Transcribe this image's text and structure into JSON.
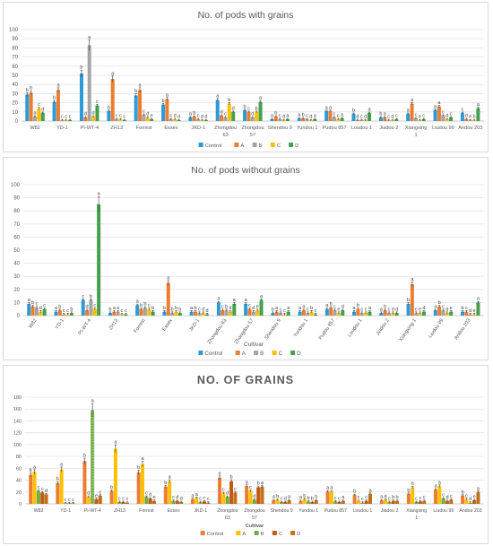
{
  "chart_data": [
    {
      "type": "bar",
      "title": "No. of pods with grains",
      "xlabel": "",
      "ylabel": "",
      "ylim": [
        0,
        100
      ],
      "yticks": [
        0,
        10,
        20,
        30,
        40,
        50,
        60,
        70,
        80,
        90,
        100
      ],
      "grid": true,
      "legend_position": "bottom",
      "categories": [
        "W82",
        "YD-1",
        "PI-WT-4",
        "ZH13",
        "Forrest",
        "Essex",
        "JKD-1",
        "Zhongdou 63",
        "Zhongdou 57",
        "Shendou 9",
        "Yundou 1",
        "Pudou 857",
        "Loudou 1",
        "Jiadou 2",
        "Xiangxing 1",
        "Liudou 99",
        "Andou 203"
      ],
      "series": [
        {
          "name": "Control",
          "color": "#2E9BD6",
          "values": [
            29,
            21,
            52,
            11,
            28,
            18,
            4,
            23,
            12,
            2,
            3,
            11,
            8,
            4,
            8,
            12,
            9
          ]
        },
        {
          "name": "A",
          "color": "#ED7D31",
          "values": [
            31,
            34,
            4,
            46,
            34,
            24,
            5,
            6,
            10,
            5,
            3,
            11,
            1,
            4,
            19,
            16,
            2
          ]
        },
        {
          "name": "B",
          "color": "#A5A5A5",
          "values": [
            5,
            1,
            83,
            2,
            7,
            2,
            2,
            4,
            4,
            2,
            2,
            4,
            1,
            1,
            3,
            6,
            1
          ]
        },
        {
          "name": "C",
          "color": "#FFC000",
          "values": [
            14,
            1,
            5,
            2,
            4,
            2,
            1,
            19,
            10,
            1,
            1,
            2,
            1,
            1,
            1,
            2,
            1
          ]
        },
        {
          "name": "D",
          "color": "#44A04C",
          "values": [
            9,
            1,
            17,
            1,
            2,
            1,
            1,
            10,
            21,
            2,
            2,
            3,
            9,
            2,
            2,
            4,
            14
          ]
        }
      ],
      "letters": [
        [
          "b",
          "b",
          "a",
          "c",
          "d"
        ],
        [
          "b",
          "a",
          "c",
          "c",
          "c"
        ],
        [
          "b",
          "d",
          "a",
          "d",
          "c"
        ],
        [
          "b",
          "a",
          "c",
          "c",
          "c"
        ],
        [
          "b",
          "a",
          "c",
          "d",
          "e"
        ],
        [
          "b",
          "a",
          "c",
          "d",
          "d"
        ],
        [
          "a",
          "b",
          "c",
          "d",
          "d"
        ],
        [
          "a",
          "d",
          "c",
          "b",
          "d"
        ],
        [
          "b",
          "c",
          "d",
          "b",
          "a"
        ],
        [
          "a",
          "b",
          "c",
          "d",
          "a"
        ],
        [
          "a",
          "b",
          "c",
          "d",
          "a"
        ],
        [
          "a",
          "a",
          "c",
          "c",
          "a"
        ],
        [
          "b",
          "d",
          "c",
          "d",
          "a"
        ],
        [
          "b",
          "a",
          "c",
          "d",
          "c"
        ],
        [
          "a",
          "a",
          "c",
          "e",
          "c"
        ],
        [
          "a",
          "a",
          "c",
          "d",
          "c"
        ],
        [
          "c",
          "d",
          "e",
          "b",
          "a"
        ]
      ]
    },
    {
      "type": "bar",
      "title": "No. of pods without grains",
      "xlabel": "Cultivar",
      "ylabel": "",
      "ylim": [
        0,
        100
      ],
      "yticks": [
        0,
        10,
        20,
        30,
        40,
        50,
        60,
        70,
        80,
        90,
        100
      ],
      "grid": true,
      "legend_position": "bottom",
      "categories": [
        "W82",
        "YD-1",
        "PI-WT-4",
        "ZH13",
        "Forrest",
        "Essex",
        "JKD-1",
        "Zhongdou 63",
        "Zhongdou 57",
        "Shendou 9",
        "Yundou 1",
        "Pudou 857",
        "Loudou 1",
        "Jiadou 2",
        "Xiangxing 1",
        "Liudou 99",
        "Andou 203"
      ],
      "series": [
        {
          "name": "Control",
          "color": "#2E9BD6",
          "values": [
            9,
            3,
            12,
            2,
            8,
            3,
            3,
            10,
            9,
            2,
            3,
            5,
            3,
            2,
            9,
            4,
            3
          ]
        },
        {
          "name": "A",
          "color": "#ED7D31",
          "values": [
            7,
            4,
            4,
            3,
            5,
            25,
            3,
            4,
            5,
            3,
            4,
            6,
            5,
            4,
            24,
            7,
            3
          ]
        },
        {
          "name": "B",
          "color": "#A5A5A5",
          "values": [
            6,
            1,
            12,
            3,
            6,
            2,
            2,
            4,
            3,
            2,
            2,
            4,
            2,
            2,
            2,
            4,
            1
          ]
        },
        {
          "name": "C",
          "color": "#FFC000",
          "values": [
            3,
            1,
            5,
            1,
            5,
            3,
            2,
            3,
            4,
            1,
            3,
            2,
            2,
            2,
            2,
            2,
            1
          ]
        },
        {
          "name": "D",
          "color": "#44A04C",
          "values": [
            5,
            2,
            85,
            1,
            3,
            2,
            1,
            9,
            12,
            3,
            1,
            4,
            3,
            2,
            3,
            3,
            10
          ]
        }
      ],
      "letters": [
        [
          "a",
          "b",
          "c",
          "d",
          "c"
        ],
        [
          "a",
          "b",
          "c",
          "c",
          "b"
        ],
        [
          "c",
          "d",
          "b",
          "c",
          "a"
        ],
        [
          "b",
          "a",
          "a",
          "c",
          "c"
        ],
        [
          "a",
          "b",
          "b",
          "c",
          "b"
        ],
        [
          "b",
          "a",
          "b",
          "b",
          "b"
        ],
        [
          "a",
          "b",
          "c",
          "d",
          "d"
        ],
        [
          "a",
          "c",
          "b",
          "d",
          "a"
        ],
        [
          "a",
          "c",
          "d",
          "e",
          "a"
        ],
        [
          "b",
          "a",
          "c",
          "c",
          "a"
        ],
        [
          "a",
          "a",
          "c",
          "b",
          "c"
        ],
        [
          "a",
          "b",
          "c",
          "e",
          "d"
        ],
        [
          "a",
          "b",
          "c",
          "c",
          "a"
        ],
        [
          "a",
          "b",
          "c",
          "d",
          "d"
        ],
        [
          "b",
          "a",
          "c",
          "e",
          "d"
        ],
        [
          "a",
          "b",
          "c",
          "d",
          "e"
        ],
        [
          "b",
          "c",
          "d",
          "e",
          "a"
        ]
      ]
    },
    {
      "type": "bar",
      "title": "NO. OF GRAINS",
      "xlabel": "Cultivar",
      "ylabel": "",
      "ylim": [
        0,
        180
      ],
      "yticks": [
        0,
        20,
        40,
        60,
        80,
        100,
        120,
        140,
        160,
        180
      ],
      "grid": true,
      "legend_position": "bottom",
      "categories": [
        "W82",
        "YD-1",
        "PI-WT-4",
        "ZH13",
        "Forrest",
        "Essex",
        "JKD-1",
        "Zhongdou 63",
        "Zhongdou 57",
        "Shendou 9",
        "Yundou 1",
        "Pudou 857",
        "Loudou 1",
        "Jiadou 2",
        "Xiangxing 1",
        "Liudou 99",
        "Andou 203"
      ],
      "series": [
        {
          "name": "Control",
          "color": "#ED7D31",
          "values": [
            49,
            35,
            72,
            22,
            53,
            29,
            8,
            44,
            30,
            6,
            5,
            21,
            15,
            6,
            17,
            24,
            14
          ]
        },
        {
          "name": "A",
          "color": "#FFC000",
          "values": [
            54,
            58,
            12,
            93,
            67,
            38,
            10,
            18,
            22,
            7,
            8,
            21,
            5,
            7,
            28,
            30,
            8
          ]
        },
        {
          "name": "B",
          "color": "#70AD47",
          "values": [
            22,
            1,
            158,
            3,
            12,
            5,
            3,
            12,
            7,
            3,
            4,
            4,
            2,
            3,
            3,
            9,
            2
          ]
        },
        {
          "name": "C",
          "color": "#C55A11",
          "values": [
            19,
            1,
            8,
            3,
            9,
            5,
            4,
            38,
            28,
            3,
            3,
            3,
            5,
            5,
            4,
            5,
            6
          ]
        },
        {
          "name": "D",
          "color": "#C0711A",
          "values": [
            16,
            1,
            14,
            2,
            5,
            3,
            2,
            19,
            29,
            6,
            6,
            5,
            17,
            5,
            5,
            7,
            20
          ]
        }
      ],
      "letters": [
        [
          "b",
          "a",
          "c",
          "c",
          "d"
        ],
        [
          "b",
          "a",
          "c",
          "c",
          "c"
        ],
        [
          "b",
          "d",
          "a",
          "e",
          "c"
        ],
        [
          "b",
          "a",
          "c",
          "c",
          "c"
        ],
        [
          "b",
          "a",
          "c",
          "d",
          "e"
        ],
        [
          "b",
          "a",
          "c",
          "d",
          "d"
        ],
        [
          "a",
          "a",
          "c",
          "c",
          "c"
        ],
        [
          "a",
          "c",
          "d",
          "b",
          "c"
        ],
        [
          "a",
          "c",
          "d",
          "b",
          "a"
        ],
        [
          "a",
          "b",
          "c",
          "d",
          "a"
        ],
        [
          "a",
          "b",
          "b",
          "b",
          "b"
        ],
        [
          "a",
          "a",
          "c",
          "c",
          "a"
        ],
        [
          "b",
          "c",
          "c",
          "c",
          "a"
        ],
        [
          "a",
          "a",
          "c",
          "b",
          "b"
        ],
        [
          "b",
          "a",
          "c",
          "c",
          "c"
        ],
        [
          "a",
          "a",
          "c",
          "d",
          "c"
        ],
        [
          "b",
          "c",
          "d",
          "e",
          "a"
        ]
      ]
    }
  ]
}
